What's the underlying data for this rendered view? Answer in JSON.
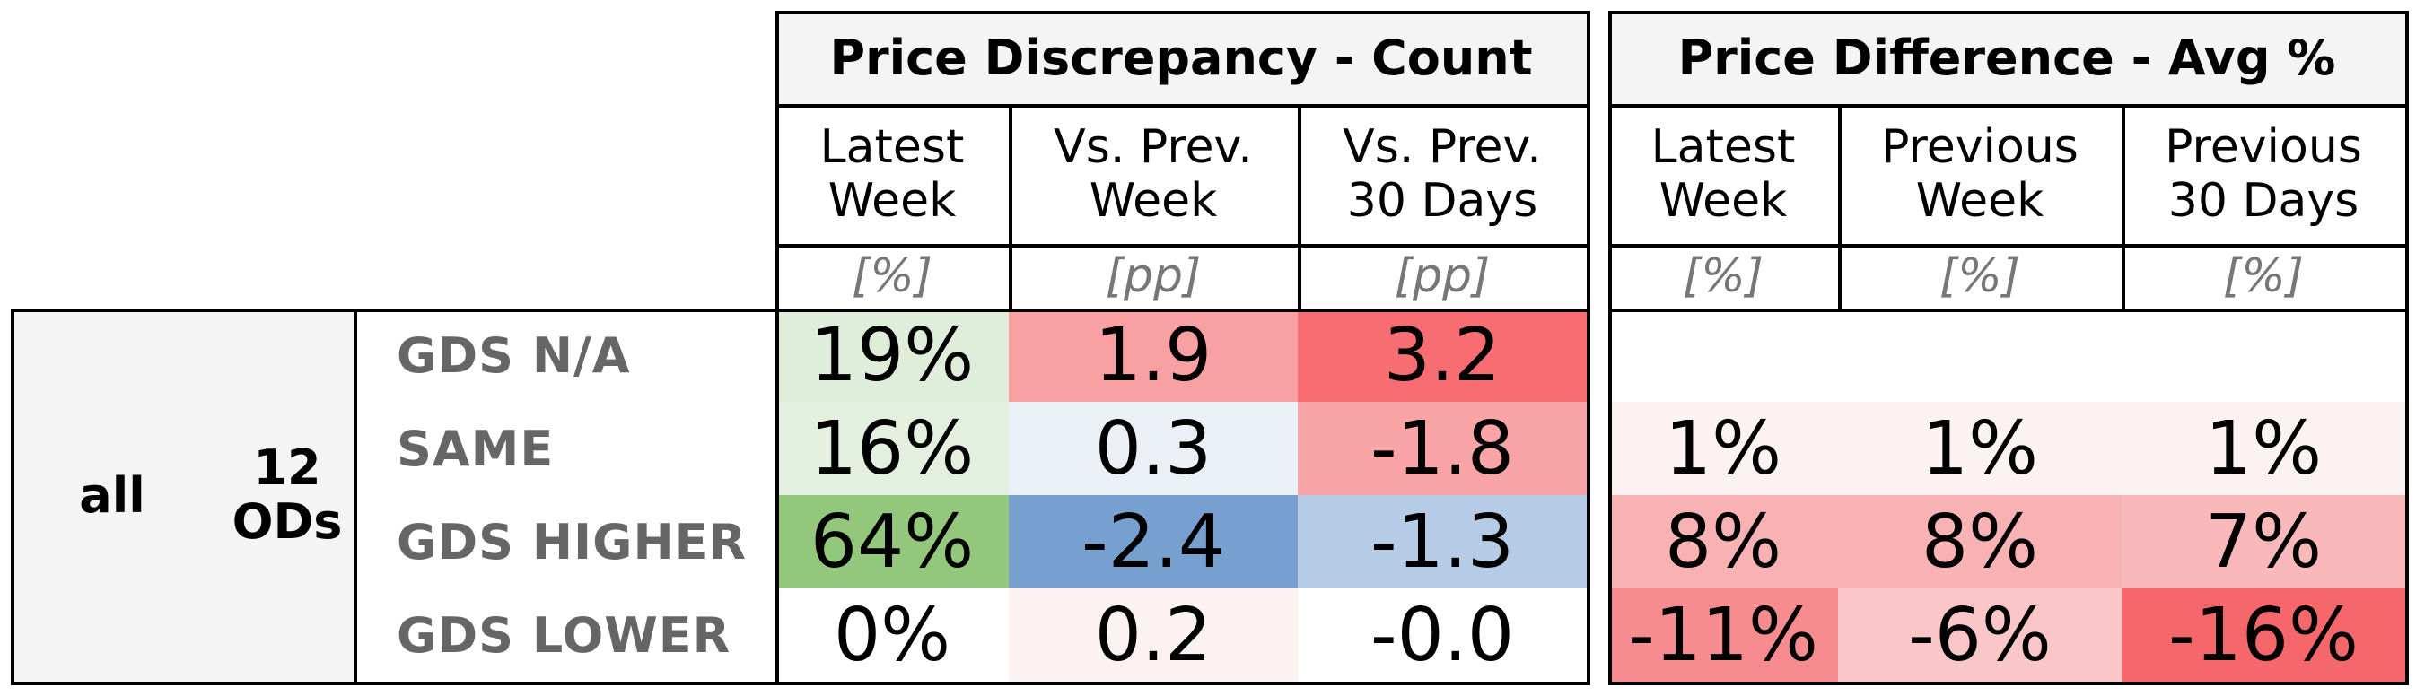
{
  "chart_data": {
    "type": "table",
    "groups": [
      {
        "title": "Price Discrepancy - Count",
        "columns": [
          {
            "header": "Latest\nWeek",
            "unit": "[%]"
          },
          {
            "header": "Vs. Prev.\nWeek",
            "unit": "[pp]"
          },
          {
            "header": "Vs. Prev.\n30 Days",
            "unit": "[pp]"
          }
        ]
      },
      {
        "title": "Price Difference - Avg %",
        "columns": [
          {
            "header": "Latest\nWeek",
            "unit": "[%]"
          },
          {
            "header": "Previous\nWeek",
            "unit": "[%]"
          },
          {
            "header": "Previous\n30 Days",
            "unit": "[%]"
          }
        ]
      }
    ],
    "segment": "all",
    "od_count": "12\nODs",
    "rows": [
      {
        "label": "GDS N/A",
        "cells": [
          "19%",
          "1.9",
          "3.2",
          "",
          "",
          ""
        ],
        "colors": [
          "#dfeedb",
          "#f9a0a2",
          "#f76d71",
          "#ffffff",
          "#ffffff",
          "#ffffff"
        ]
      },
      {
        "label": "SAME",
        "cells": [
          "16%",
          "0.3",
          "-1.8",
          "1%",
          "1%",
          "1%"
        ],
        "colors": [
          "#e3f0e0",
          "#ebf0f7",
          "#f9a4a6",
          "#fdf2f2",
          "#fdf2f2",
          "#fdf2f2"
        ]
      },
      {
        "label": "GDS HIGHER",
        "cells": [
          "64%",
          "-2.4",
          "-1.3",
          "8%",
          "8%",
          "7%"
        ],
        "colors": [
          "#92c77c",
          "#779fd0",
          "#b6cbe6",
          "#f9b2b4",
          "#f9b2b4",
          "#f9b8ba"
        ]
      },
      {
        "label": "GDS LOWER",
        "cells": [
          "0%",
          "0.2",
          "-0.0",
          "-11%",
          "-6%",
          "-16%"
        ],
        "colors": [
          "#ffffff",
          "#fdf2f2",
          "#ffffff",
          "#f68c8f",
          "#fac6c7",
          "#f5676b"
        ]
      }
    ]
  }
}
